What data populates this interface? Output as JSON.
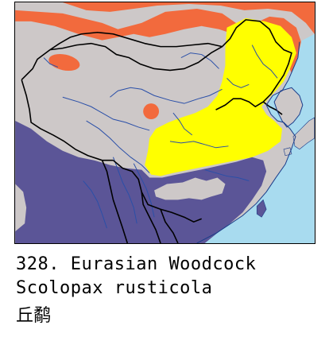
{
  "caption": {
    "number": "328.",
    "common_name": "Eurasian Woodcock",
    "scientific_name": "Scolopax rusticola",
    "chinese_name": "丘鹬"
  },
  "map_colors": {
    "land": "#cdc8c8",
    "sea": "#a8dbef",
    "breeding_orange": "#f26a3d",
    "migration_yellow": "#ffff00",
    "wintering_purple": "#5b5597",
    "border": "#000000",
    "river": "#2a4fa8"
  }
}
